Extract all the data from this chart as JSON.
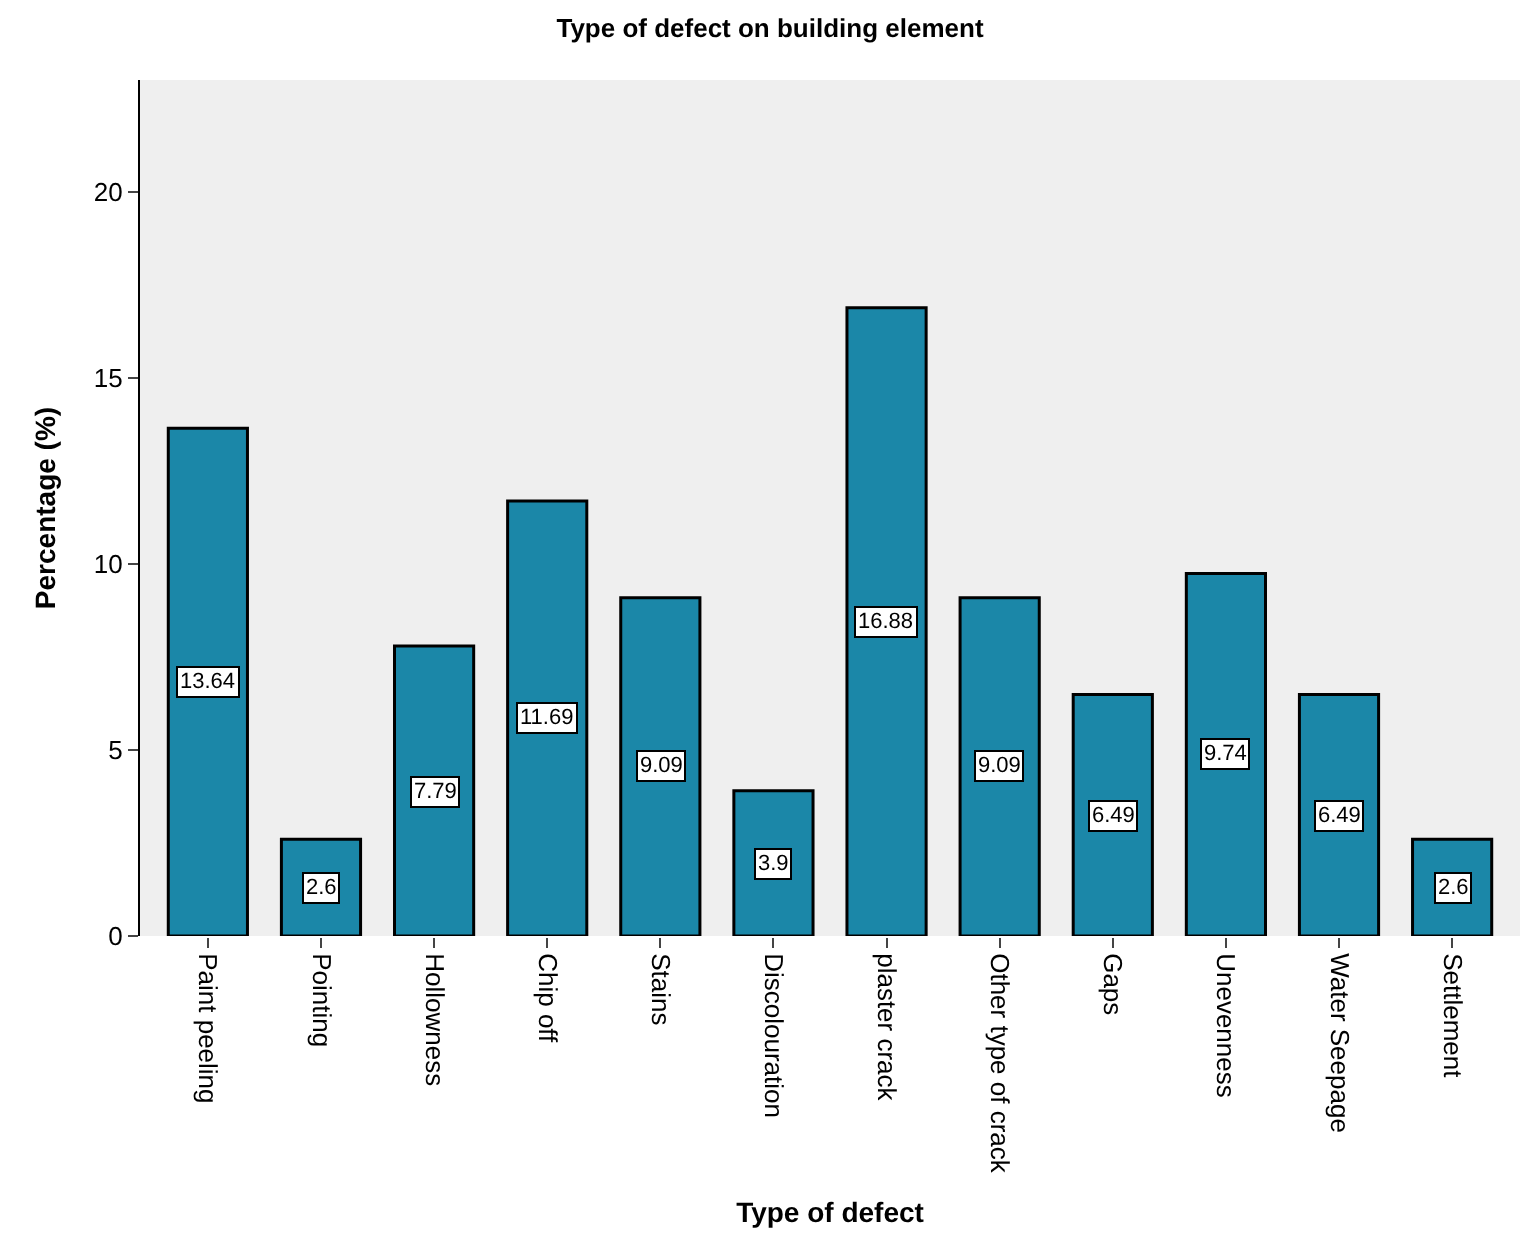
{
  "chart_data": {
    "type": "bar",
    "title": "Type of defect on building element",
    "xlabel": "Type of defect",
    "ylabel": "Percentage (%)",
    "categories": [
      "Paint peeling",
      "Pointing",
      "Hollowness",
      "Chip off",
      "Stains",
      "Discolouration",
      "plaster crack",
      "Other type of crack",
      "Gaps",
      "Unevenness",
      "Water Seepage",
      "Settlement"
    ],
    "values": [
      13.64,
      2.6,
      7.79,
      11.69,
      9.09,
      3.9,
      16.88,
      9.09,
      6.49,
      9.74,
      6.49,
      2.6
    ],
    "color": "#1b87a8",
    "ylim": [
      0,
      23
    ],
    "yticks": [
      0,
      5,
      10,
      15,
      20
    ],
    "grid": false,
    "data_labels": true
  }
}
